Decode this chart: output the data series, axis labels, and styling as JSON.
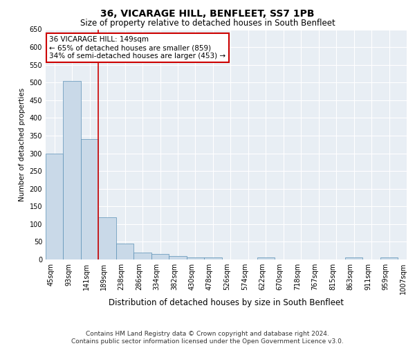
{
  "title": "36, VICARAGE HILL, BENFLEET, SS7 1PB",
  "subtitle": "Size of property relative to detached houses in South Benfleet",
  "xlabel": "Distribution of detached houses by size in South Benfleet",
  "ylabel": "Number of detached properties",
  "bins": [
    "45sqm",
    "93sqm",
    "141sqm",
    "189sqm",
    "238sqm",
    "286sqm",
    "334sqm",
    "382sqm",
    "430sqm",
    "478sqm",
    "526sqm",
    "574sqm",
    "622sqm",
    "670sqm",
    "718sqm",
    "767sqm",
    "815sqm",
    "863sqm",
    "911sqm",
    "959sqm",
    "1007sqm"
  ],
  "values": [
    300,
    505,
    340,
    120,
    45,
    20,
    15,
    10,
    5,
    5,
    0,
    0,
    5,
    0,
    0,
    0,
    0,
    5,
    0,
    5
  ],
  "bar_color": "#c9d9e8",
  "bar_edge_color": "#5a90b5",
  "vline_x_index": 2.5,
  "vline_color": "#cc0000",
  "annotation_text": "36 VICARAGE HILL: 149sqm\n← 65% of detached houses are smaller (859)\n34% of semi-detached houses are larger (453) →",
  "annotation_box_color": "#ffffff",
  "annotation_box_edge": "#cc0000",
  "ylim": [
    0,
    650
  ],
  "yticks": [
    0,
    50,
    100,
    150,
    200,
    250,
    300,
    350,
    400,
    450,
    500,
    550,
    600,
    650
  ],
  "bg_color": "#e8eef4",
  "footer": "Contains HM Land Registry data © Crown copyright and database right 2024.\nContains public sector information licensed under the Open Government Licence v3.0.",
  "title_fontsize": 10,
  "subtitle_fontsize": 8.5,
  "xlabel_fontsize": 8.5,
  "ylabel_fontsize": 7.5,
  "tick_fontsize": 7,
  "annotation_fontsize": 7.5,
  "footer_fontsize": 6.5
}
